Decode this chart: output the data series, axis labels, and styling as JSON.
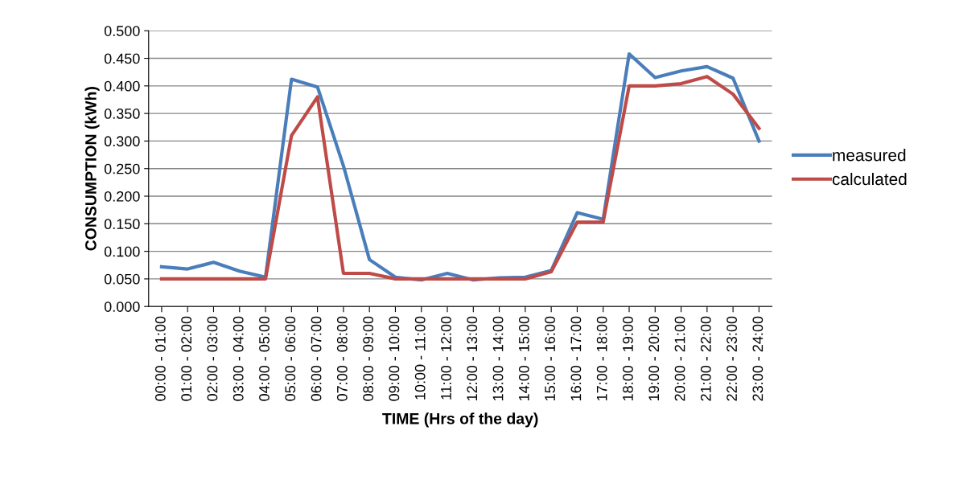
{
  "chart_data": {
    "type": "line",
    "xlabel": "TIME (Hrs of the day)",
    "ylabel": "CONSUMPTION (kWh)",
    "categories": [
      "00:00 - 01:00",
      "01:00 - 02:00",
      "02:00 - 03:00",
      "03:00 - 04:00",
      "04:00 - 05:00",
      "05:00 - 06:00",
      "06:00 - 07:00",
      "07:00 - 08:00",
      "08:00 - 09:00",
      "09:00 - 10:00",
      "10:00 - 11:00",
      "11:00 - 12:00",
      "12:00 - 13:00",
      "13:00 - 14:00",
      "14:00 - 15:00",
      "15:00 - 16:00",
      "16:00 - 17:00",
      "17:00 - 18:00",
      "18:00 - 19:00",
      "19:00 - 20:00",
      "20:00 - 21:00",
      "21:00 - 22:00",
      "22:00 - 23:00",
      "23:00 - 24:00"
    ],
    "series": [
      {
        "name": "measured",
        "color": "#4a7ebb",
        "values": [
          0.072,
          0.068,
          0.08,
          0.064,
          0.053,
          0.412,
          0.398,
          0.255,
          0.085,
          0.053,
          0.048,
          0.06,
          0.048,
          0.052,
          0.053,
          0.065,
          0.17,
          0.158,
          0.458,
          0.415,
          0.427,
          0.435,
          0.414,
          0.3
        ]
      },
      {
        "name": "calculated",
        "color": "#be4b48",
        "values": [
          0.05,
          0.05,
          0.05,
          0.05,
          0.05,
          0.31,
          0.38,
          0.06,
          0.06,
          0.05,
          0.05,
          0.05,
          0.05,
          0.05,
          0.05,
          0.063,
          0.153,
          0.153,
          0.4,
          0.4,
          0.404,
          0.417,
          0.385,
          0.323
        ]
      }
    ],
    "ylim": [
      0,
      0.5
    ],
    "yticks": [
      {
        "value": 0,
        "label": "0.000"
      },
      {
        "value": 0.05,
        "label": "0.050"
      },
      {
        "value": 0.1,
        "label": "0.100"
      },
      {
        "value": 0.15,
        "label": "0.150"
      },
      {
        "value": 0.2,
        "label": "0.200"
      },
      {
        "value": 0.25,
        "label": "0.250"
      },
      {
        "value": 0.3,
        "label": "0.300"
      },
      {
        "value": 0.35,
        "label": "0.350"
      },
      {
        "value": 0.4,
        "label": "0.400"
      },
      {
        "value": 0.45,
        "label": "0.450"
      },
      {
        "value": 0.5,
        "label": "0.500"
      }
    ],
    "grid": "y",
    "legend": "right",
    "marker": "none",
    "line_style": "solid"
  }
}
